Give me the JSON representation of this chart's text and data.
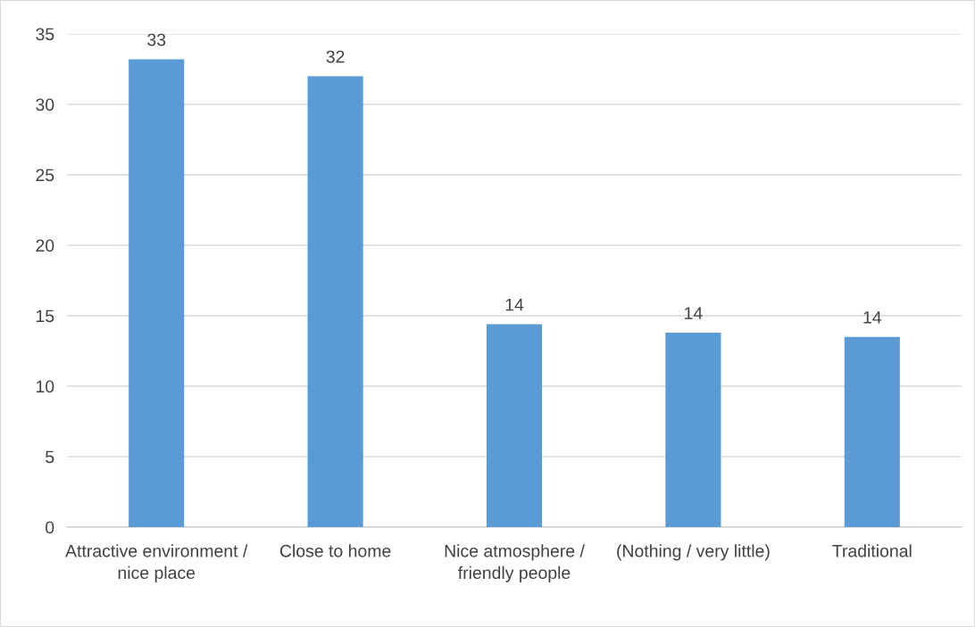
{
  "chart_data": {
    "type": "bar",
    "categories": [
      "Attractive environment / nice place",
      "Close to home",
      "Nice atmosphere / friendly people",
      "(Nothing / very little)",
      "Traditional"
    ],
    "values": [
      33.2,
      32.0,
      14.4,
      13.8,
      13.5
    ],
    "value_labels": [
      "33",
      "32",
      "14",
      "14",
      "14"
    ],
    "color": "#5b9bd5",
    "ylim": [
      0,
      35
    ],
    "yticks": [
      0,
      5,
      10,
      15,
      20,
      25,
      30,
      35
    ],
    "grid": "y"
  }
}
